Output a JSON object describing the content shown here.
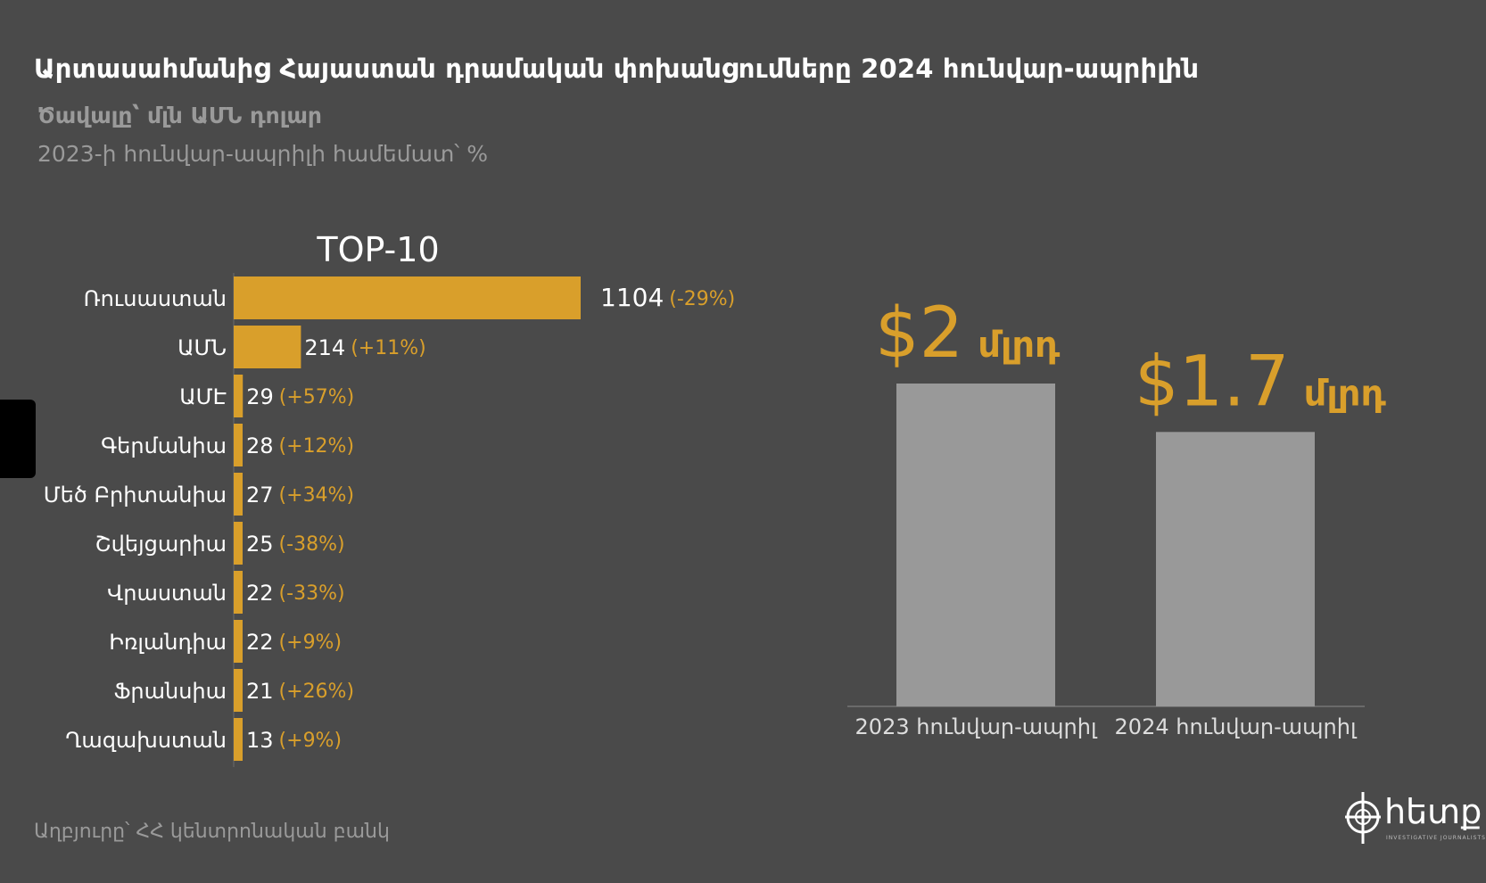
{
  "header": {
    "title": "Արտասահմանից Հայաստան դրամական փոխանցումները 2024 հունվար-ապրիլին",
    "subtitle_1": "Ծավալը՝ մլն ԱՄՆ դոլար",
    "subtitle_2": "2023-ի հունվար-ապրիլի համեմատ՝ %"
  },
  "footer": {
    "source": "Աղբյուրը՝ ՀՀ կենտրոնական բանկ",
    "logo_text": "հետք",
    "logo_subtext": "INVESTIGATIVE JOURNALISTS"
  },
  "colors": {
    "background": "#4a4a4a",
    "accent": "#d99f2b",
    "gray_bar": "#999999",
    "text": "#ffffff",
    "muted": "#9a9a9a"
  },
  "chart_data": [
    {
      "type": "bar",
      "orientation": "horizontal",
      "title": "TOP-10",
      "categories": [
        "Ռուսաստան",
        "ԱՄՆ",
        "ԱՄԷ",
        "Գերմանիա",
        "Մեծ Բրիտանիա",
        "Շվեյցարիա",
        "Վրաստան",
        "Իռլանդիա",
        "Ֆրանսիա",
        "Ղազախստան"
      ],
      "values": [
        1104,
        214,
        29,
        28,
        27,
        25,
        22,
        22,
        21,
        13
      ],
      "change_labels": [
        "(-29%)",
        "(+11%)",
        "(+57%)",
        "(+12%)",
        "(+34%)",
        "(-38%)",
        "(-33%)",
        "(+9%)",
        "(+26%)",
        "(+9%)"
      ],
      "xlim": [
        0,
        1104
      ]
    },
    {
      "type": "bar",
      "orientation": "vertical",
      "categories": [
        "2023 հունվար-ապրիլ",
        "2024 հունվար-ապրիլ"
      ],
      "values": [
        2.0,
        1.7
      ],
      "value_labels": [
        "$2",
        "$1.7"
      ],
      "unit_label": "մլրդ",
      "ylim": [
        0,
        2.0
      ]
    }
  ]
}
